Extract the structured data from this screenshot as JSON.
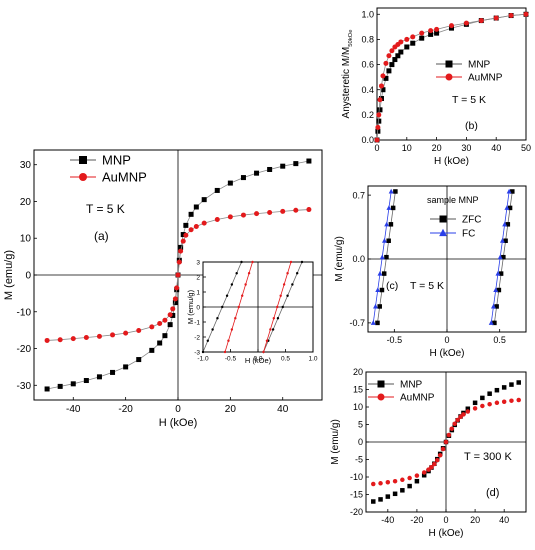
{
  "chart_data": [
    {
      "id": "a",
      "type": "scatter",
      "panel_label": "(a)",
      "annotation": "T = 5 K",
      "xlabel": "H (kOe)",
      "ylabel": "M (emu/g)",
      "xlim": [
        -55,
        55
      ],
      "ylim": [
        -34,
        34
      ],
      "xticks": [
        -40,
        -20,
        0,
        20,
        40
      ],
      "yticks": [
        -30,
        -20,
        -10,
        0,
        10,
        20,
        30
      ],
      "legend": "top-left",
      "series": [
        {
          "name": "MNP",
          "color": "#000000",
          "marker": "square",
          "x": [
            -50,
            -45,
            -40,
            -35,
            -30,
            -25,
            -20,
            -15,
            -10,
            -7,
            -5,
            -3,
            -2,
            -1,
            -0.5,
            0,
            0.5,
            1,
            2,
            3,
            5,
            7,
            10,
            15,
            20,
            25,
            30,
            35,
            40,
            45,
            50
          ],
          "y": [
            -31,
            -30.3,
            -29.6,
            -28.7,
            -27.7,
            -26.5,
            -25,
            -23,
            -20.5,
            -18.5,
            -16.5,
            -13.5,
            -11,
            -7.5,
            -4,
            0,
            4,
            7.5,
            11,
            13.5,
            16.5,
            18.5,
            20.5,
            23,
            25,
            26.5,
            27.7,
            28.7,
            29.6,
            30.3,
            31
          ]
        },
        {
          "name": "AuMNP",
          "color": "#e31a1c",
          "marker": "circle",
          "x": [
            -50,
            -45,
            -40,
            -35,
            -30,
            -25,
            -20,
            -15,
            -10,
            -7,
            -5,
            -3,
            -2,
            -1,
            -0.5,
            0,
            0.5,
            1,
            2,
            3,
            5,
            7,
            10,
            15,
            20,
            25,
            30,
            35,
            40,
            45,
            50
          ],
          "y": [
            -17.8,
            -17.6,
            -17.3,
            -17,
            -16.7,
            -16.3,
            -15.8,
            -15.1,
            -14.1,
            -13.2,
            -12.3,
            -10.8,
            -9.2,
            -6.5,
            -3.5,
            0,
            3.5,
            6.5,
            9.2,
            10.8,
            12.3,
            13.2,
            14.1,
            15.1,
            15.8,
            16.3,
            16.7,
            17,
            17.3,
            17.6,
            17.8
          ]
        }
      ]
    },
    {
      "id": "a-inset",
      "type": "line",
      "xlabel": "H (kOe)",
      "ylabel": "M (emu/g)",
      "xlim": [
        -1,
        1
      ],
      "ylim": [
        -3,
        3
      ],
      "xticks": [
        -1.0,
        -0.5,
        0.0,
        0.5,
        1.0
      ],
      "yticks": [
        -3,
        -2,
        -1,
        0,
        1,
        2,
        3
      ],
      "series": [
        {
          "name": "MNP",
          "color": "#000000",
          "branches": [
            [
              [
                -1.0,
                -3
              ],
              [
                -0.3,
                3
              ]
            ],
            [
              [
                0.1,
                -3
              ],
              [
                0.8,
                3
              ]
            ]
          ]
        },
        {
          "name": "AuMNP",
          "color": "#e31a1c",
          "branches": [
            [
              [
                -0.6,
                -3
              ],
              [
                -0.1,
                3
              ]
            ],
            [
              [
                0.1,
                -3
              ],
              [
                0.6,
                3
              ]
            ]
          ]
        }
      ]
    },
    {
      "id": "b",
      "type": "line",
      "panel_label": "(b)",
      "annotation": "T = 5 K",
      "xlabel": "H (kOe)",
      "ylabel": "Anysteretic M/M",
      "ylabel_sub": "50kOe",
      "xlim": [
        0,
        50
      ],
      "ylim": [
        0,
        1.05
      ],
      "xticks": [
        0,
        10,
        20,
        30,
        40,
        50
      ],
      "yticks": [
        0.0,
        0.2,
        0.4,
        0.6,
        0.8,
        1.0
      ],
      "legend": "center",
      "series": [
        {
          "name": "MNP",
          "color": "#000000",
          "marker": "square",
          "x": [
            0,
            0.3,
            0.6,
            1,
            1.5,
            2,
            3,
            4,
            5,
            6,
            7,
            8,
            10,
            12,
            15,
            18,
            20,
            25,
            30,
            35,
            40,
            45,
            50
          ],
          "y": [
            0,
            0.07,
            0.15,
            0.24,
            0.33,
            0.4,
            0.49,
            0.55,
            0.6,
            0.64,
            0.67,
            0.7,
            0.74,
            0.77,
            0.81,
            0.84,
            0.85,
            0.89,
            0.92,
            0.95,
            0.97,
            0.99,
            1.0
          ]
        },
        {
          "name": "AuMNP",
          "color": "#e31a1c",
          "marker": "circle",
          "x": [
            0,
            0.3,
            0.6,
            1,
            1.5,
            2,
            3,
            4,
            5,
            6,
            7,
            8,
            10,
            12,
            15,
            18,
            20,
            25,
            30,
            35,
            40,
            45,
            50
          ],
          "y": [
            0,
            0.1,
            0.2,
            0.32,
            0.43,
            0.51,
            0.61,
            0.67,
            0.71,
            0.74,
            0.76,
            0.78,
            0.8,
            0.82,
            0.85,
            0.87,
            0.88,
            0.91,
            0.93,
            0.95,
            0.97,
            0.99,
            1.0
          ]
        }
      ]
    },
    {
      "id": "c",
      "type": "line",
      "panel_label": "(c)",
      "annotation": "T = 5 K",
      "xlabel": "H (kOe)",
      "ylabel": "M (emu/g)",
      "legend_title": "sample MNP",
      "xlim": [
        -0.75,
        0.75
      ],
      "ylim": [
        -0.8,
        0.8
      ],
      "xticks": [
        -0.5,
        0.0,
        0.5
      ],
      "yticks": [
        -0.7,
        0.0,
        0.7
      ],
      "legend": "top-right",
      "series": [
        {
          "name": "ZFC",
          "color": "#000000",
          "marker": "square",
          "branches": [
            [
              [
                -0.66,
                -0.7
              ],
              [
                -0.49,
                0.74
              ]
            ],
            [
              [
                0.45,
                -0.7
              ],
              [
                0.62,
                0.74
              ]
            ]
          ]
        },
        {
          "name": "FC",
          "color": "#2a3fe8",
          "marker": "triangle",
          "branches": [
            [
              [
                -0.7,
                -0.7
              ],
              [
                -0.53,
                0.74
              ]
            ],
            [
              [
                0.42,
                -0.7
              ],
              [
                0.59,
                0.74
              ]
            ]
          ]
        }
      ]
    },
    {
      "id": "d",
      "type": "scatter",
      "panel_label": "(d)",
      "annotation": "T = 300 K",
      "xlabel": "H (kOe)",
      "ylabel": "M (emu/g)",
      "xlim": [
        -55,
        55
      ],
      "ylim": [
        -20,
        20
      ],
      "xticks": [
        -40,
        -20,
        0,
        20,
        40
      ],
      "yticks": [
        -20,
        -15,
        -10,
        -5,
        0,
        5,
        10,
        15,
        20
      ],
      "legend": "top-left",
      "series": [
        {
          "name": "MNP",
          "color": "#000000",
          "marker": "square",
          "x": [
            -50,
            -45,
            -40,
            -35,
            -30,
            -25,
            -20,
            -15,
            -12,
            -10,
            -8,
            -6,
            -4,
            -2,
            0,
            2,
            4,
            6,
            8,
            10,
            12,
            15,
            20,
            25,
            30,
            35,
            40,
            45,
            50
          ],
          "y": [
            -17,
            -16.4,
            -15.6,
            -14.8,
            -13.8,
            -12.6,
            -11.2,
            -9.5,
            -8.3,
            -7.3,
            -6.2,
            -4.9,
            -3.4,
            -1.8,
            0,
            1.8,
            3.4,
            4.9,
            6.2,
            7.3,
            8.3,
            9.5,
            11.2,
            12.6,
            13.8,
            14.8,
            15.6,
            16.4,
            17
          ]
        },
        {
          "name": "AuMNP",
          "color": "#e31a1c",
          "marker": "circle",
          "x": [
            -50,
            -45,
            -40,
            -35,
            -30,
            -25,
            -20,
            -15,
            -12,
            -10,
            -8,
            -6,
            -4,
            -2,
            0,
            2,
            4,
            6,
            8,
            10,
            12,
            15,
            20,
            25,
            30,
            35,
            40,
            45,
            50
          ],
          "y": [
            -12,
            -11.8,
            -11.5,
            -11.2,
            -10.8,
            -10.3,
            -9.6,
            -8.7,
            -7.9,
            -7.2,
            -6.3,
            -5.2,
            -3.8,
            -2,
            0,
            2,
            3.8,
            5.2,
            6.3,
            7.2,
            7.9,
            8.7,
            9.6,
            10.3,
            10.8,
            11.2,
            11.5,
            11.8,
            12
          ]
        }
      ]
    }
  ]
}
